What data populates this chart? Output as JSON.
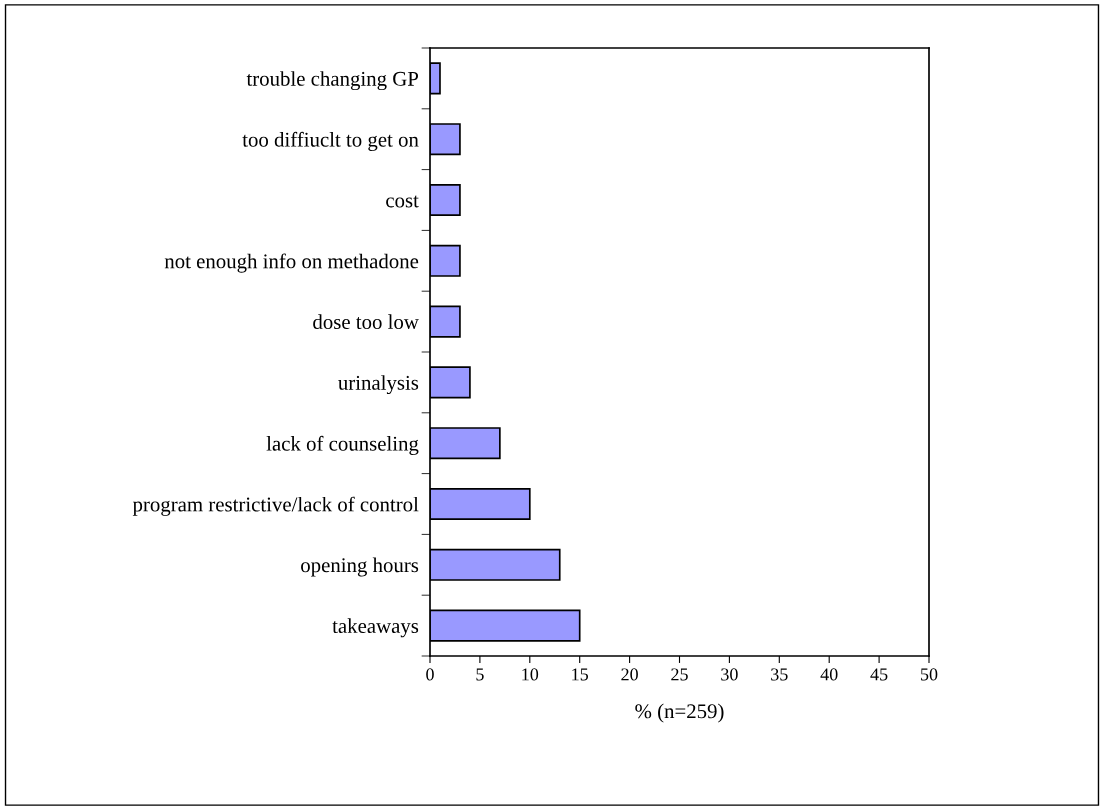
{
  "chart_data": {
    "type": "bar",
    "orientation": "horizontal",
    "categories": [
      "trouble changing GP",
      "too diffiuclt to get on",
      "cost",
      "not enough info on methadone",
      "dose too low",
      "urinalysis",
      "lack of counseling",
      "program restrictive/lack of control",
      "opening hours",
      "takeaways"
    ],
    "values": [
      1,
      3,
      3,
      3,
      3,
      4,
      7,
      10,
      13,
      15
    ],
    "color": "#9999ff",
    "xlabel": "% (n=259)",
    "xlim": [
      0,
      50
    ],
    "xticks": [
      0,
      5,
      10,
      15,
      20,
      25,
      30,
      35,
      40,
      45,
      50
    ],
    "grid": false,
    "legend": false
  }
}
